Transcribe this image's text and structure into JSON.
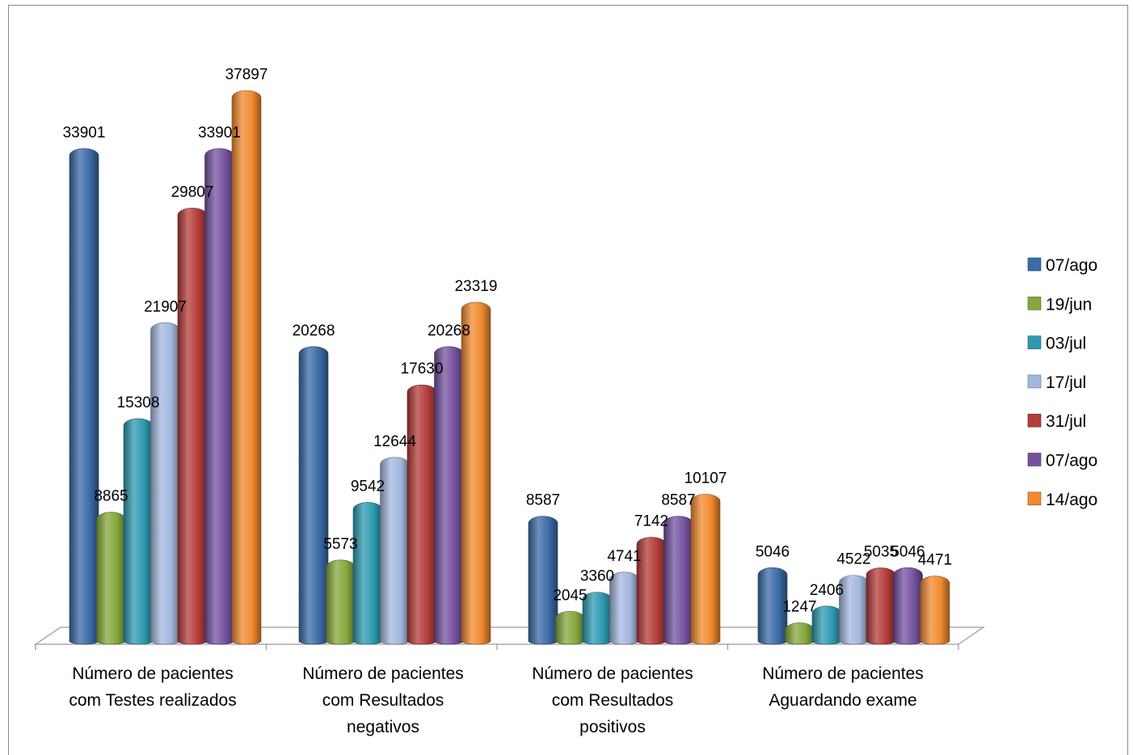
{
  "chart_data": {
    "type": "bar",
    "categories": [
      [
        "Número de pacientes",
        "com Testes realizados"
      ],
      [
        "Número de pacientes",
        "com Resultados",
        "negativos"
      ],
      [
        "Número de pacientes",
        "com Resultados",
        "positivos"
      ],
      [
        "Número de pacientes",
        "Aguardando exame"
      ]
    ],
    "series": [
      {
        "name": "07/ago",
        "color": "#3b6ba8",
        "values": [
          33901,
          20268,
          8587,
          5046
        ]
      },
      {
        "name": "19/jun",
        "color": "#86a83c",
        "values": [
          8865,
          5573,
          2045,
          1247
        ]
      },
      {
        "name": "03/jul",
        "color": "#2d9ab0",
        "values": [
          15308,
          9542,
          3360,
          2406
        ]
      },
      {
        "name": "17/jul",
        "color": "#a3b7de",
        "values": [
          21907,
          12644,
          4741,
          4522
        ]
      },
      {
        "name": "31/jul",
        "color": "#b43c3a",
        "values": [
          29807,
          17630,
          7142,
          5035
        ]
      },
      {
        "name": "07/ago",
        "color": "#7552a0",
        "values": [
          33901,
          20268,
          8587,
          5046
        ]
      },
      {
        "name": "14/ago",
        "color": "#f08a2f",
        "values": [
          37897,
          23319,
          10107,
          4471
        ]
      }
    ],
    "ylim": [
      0,
      37897
    ],
    "legend_position": "right",
    "grid": false
  }
}
